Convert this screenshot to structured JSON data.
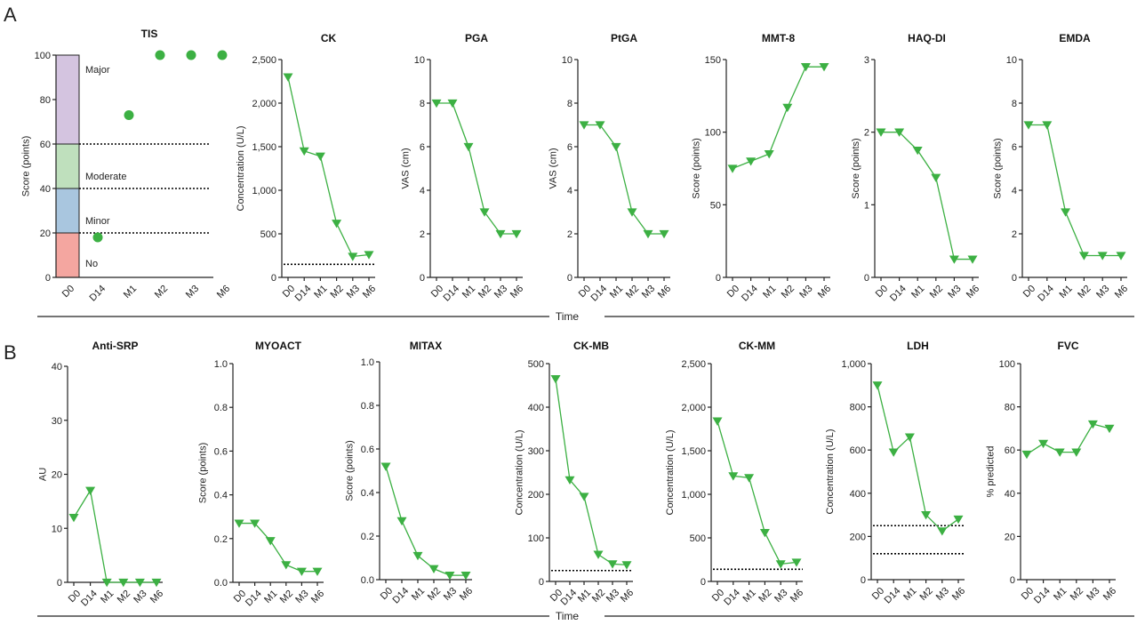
{
  "figure": {
    "panel_letters": [
      "A",
      "B"
    ],
    "time_label": "Time",
    "colors": {
      "series": "#3cb043",
      "axis": "#222222",
      "threshold": "#000000"
    }
  },
  "tis_bands": [
    {
      "label": "No",
      "from": 0,
      "to": 20,
      "color": "#f4a6a0"
    },
    {
      "label": "Minor",
      "from": 20,
      "to": 40,
      "color": "#a9c6df"
    },
    {
      "label": "Moderate",
      "from": 40,
      "to": 60,
      "color": "#bfe0bd"
    },
    {
      "label": "Major",
      "from": 60,
      "to": 100,
      "color": "#d4c4e0"
    }
  ],
  "chart_data": [
    {
      "id": "tis",
      "row": "A",
      "type": "scatter",
      "title": "TIS",
      "ylabel": "Score (points)",
      "categories": [
        "D0",
        "D14",
        "M1",
        "M2",
        "M3",
        "M6"
      ],
      "ylim": [
        0,
        100
      ],
      "yticks": [
        0,
        20,
        40,
        60,
        80,
        100
      ],
      "ytick_labels": [
        "0",
        "20",
        "40",
        "60",
        "80",
        "100"
      ],
      "values": [
        null,
        18,
        73,
        100,
        100,
        100
      ],
      "thresholds": [
        20,
        40,
        60
      ]
    },
    {
      "id": "ck",
      "row": "A",
      "type": "line",
      "title": "CK",
      "ylabel": "Concentration (U/L)",
      "categories": [
        "D0",
        "D14",
        "M1",
        "M2",
        "M3",
        "M6"
      ],
      "ylim": [
        0,
        2500
      ],
      "yticks": [
        0,
        500,
        1000,
        1500,
        2000,
        2500
      ],
      "ytick_labels": [
        "0",
        "500",
        "1,000",
        "1,500",
        "2,000",
        "2,500"
      ],
      "values": [
        2300,
        1450,
        1390,
        620,
        240,
        260
      ],
      "thresholds": [
        150
      ]
    },
    {
      "id": "pga",
      "row": "A",
      "type": "line",
      "title": "PGA",
      "ylabel": "VAS (cm)",
      "categories": [
        "D0",
        "D14",
        "M1",
        "M2",
        "M3",
        "M6"
      ],
      "ylim": [
        0,
        10
      ],
      "yticks": [
        0,
        2,
        4,
        6,
        8,
        10
      ],
      "ytick_labels": [
        "0",
        "2",
        "4",
        "6",
        "8",
        "10"
      ],
      "values": [
        8,
        8,
        6,
        3,
        2,
        2
      ],
      "thresholds": []
    },
    {
      "id": "ptga",
      "row": "A",
      "type": "line",
      "title": "PtGA",
      "ylabel": "VAS (cm)",
      "categories": [
        "D0",
        "D14",
        "M1",
        "M2",
        "M3",
        "M6"
      ],
      "ylim": [
        0,
        10
      ],
      "yticks": [
        0,
        2,
        4,
        6,
        8,
        10
      ],
      "ytick_labels": [
        "0",
        "2",
        "4",
        "6",
        "8",
        "10"
      ],
      "values": [
        7,
        7,
        6,
        3,
        2,
        2
      ],
      "thresholds": []
    },
    {
      "id": "mmt8",
      "row": "A",
      "type": "line",
      "title": "MMT-8",
      "ylabel": "Score (points)",
      "categories": [
        "D0",
        "D14",
        "M1",
        "M2",
        "M3",
        "M6"
      ],
      "ylim": [
        0,
        150
      ],
      "yticks": [
        0,
        50,
        100,
        150
      ],
      "ytick_labels": [
        "0",
        "50",
        "100",
        "150"
      ],
      "values": [
        75,
        80,
        85,
        117,
        145,
        145
      ],
      "thresholds": []
    },
    {
      "id": "haqdi",
      "row": "A",
      "type": "line",
      "title": "HAQ-DI",
      "ylabel": "Score (points)",
      "categories": [
        "D0",
        "D14",
        "M1",
        "M2",
        "M3",
        "M6"
      ],
      "ylim": [
        0,
        3
      ],
      "yticks": [
        0,
        1,
        2,
        3
      ],
      "ytick_labels": [
        "0",
        "1",
        "2",
        "3"
      ],
      "values": [
        2,
        2,
        1.75,
        1.375,
        0.25,
        0.25
      ],
      "thresholds": []
    },
    {
      "id": "emda",
      "row": "A",
      "type": "line",
      "title": "EMDA",
      "ylabel": "Score (points)",
      "categories": [
        "D0",
        "D14",
        "M1",
        "M2",
        "M3",
        "M6"
      ],
      "ylim": [
        0,
        10
      ],
      "yticks": [
        0,
        2,
        4,
        6,
        8,
        10
      ],
      "ytick_labels": [
        "0",
        "2",
        "4",
        "6",
        "8",
        "10"
      ],
      "values": [
        7,
        7,
        3,
        1,
        1,
        1
      ],
      "thresholds": []
    },
    {
      "id": "antisrp",
      "row": "B",
      "type": "line",
      "title": "Anti-SRP",
      "ylabel": "AU",
      "categories": [
        "D0",
        "D14",
        "M1",
        "M2",
        "M3",
        "M6"
      ],
      "ylim": [
        0,
        40
      ],
      "yticks": [
        0,
        10,
        20,
        30,
        40
      ],
      "ytick_labels": [
        "0",
        "10",
        "20",
        "30",
        "40"
      ],
      "values": [
        12,
        17,
        0,
        0,
        0,
        0
      ],
      "thresholds": []
    },
    {
      "id": "myoact",
      "row": "B",
      "type": "line",
      "title": "MYOACT",
      "ylabel": "Score (points)",
      "categories": [
        "D0",
        "D14",
        "M1",
        "M2",
        "M3",
        "M6"
      ],
      "ylim": [
        0,
        1
      ],
      "yticks": [
        0,
        0.2,
        0.4,
        0.6,
        0.8,
        1
      ],
      "ytick_labels": [
        "0.0",
        "0.2",
        "0.4",
        "0.6",
        "0.8",
        "1.0"
      ],
      "values": [
        0.27,
        0.27,
        0.19,
        0.08,
        0.05,
        0.05
      ],
      "thresholds": []
    },
    {
      "id": "mitax",
      "row": "B",
      "type": "line",
      "title": "MITAX",
      "ylabel": "Score (points)",
      "categories": [
        "D0",
        "D14",
        "M1",
        "M2",
        "M3",
        "M6"
      ],
      "ylim": [
        0,
        1
      ],
      "yticks": [
        0,
        0.2,
        0.4,
        0.6,
        0.8,
        1
      ],
      "ytick_labels": [
        "0.0",
        "0.2",
        "0.4",
        "0.6",
        "0.8",
        "1.0"
      ],
      "values": [
        0.52,
        0.27,
        0.11,
        0.05,
        0.02,
        0.02
      ],
      "thresholds": []
    },
    {
      "id": "ckmb",
      "row": "B",
      "type": "line",
      "title": "CK-MB",
      "ylabel": "Concentration (U/L)",
      "categories": [
        "D0",
        "D14",
        "M1",
        "M2",
        "M3",
        "M6"
      ],
      "ylim": [
        0,
        500
      ],
      "yticks": [
        0,
        100,
        200,
        300,
        400,
        500
      ],
      "ytick_labels": [
        "0",
        "100",
        "200",
        "300",
        "400",
        "500"
      ],
      "values": [
        465,
        233,
        195,
        62,
        40,
        38
      ],
      "thresholds": [
        25
      ]
    },
    {
      "id": "ckmm",
      "row": "B",
      "type": "line",
      "title": "CK-MM",
      "ylabel": "Concentration (U/L)",
      "categories": [
        "D0",
        "D14",
        "M1",
        "M2",
        "M3",
        "M6"
      ],
      "ylim": [
        0,
        2500
      ],
      "yticks": [
        0,
        500,
        1000,
        1500,
        2000,
        2500
      ],
      "ytick_labels": [
        "0",
        "500",
        "1,000",
        "1,500",
        "2,000",
        "2,500"
      ],
      "values": [
        1840,
        1210,
        1190,
        560,
        200,
        220
      ],
      "thresholds": [
        140
      ]
    },
    {
      "id": "ldh",
      "row": "B",
      "type": "line",
      "title": "LDH",
      "ylabel": "Concentration (U/L)",
      "categories": [
        "D0",
        "D14",
        "M1",
        "M2",
        "M3",
        "M6"
      ],
      "ylim": [
        0,
        1000
      ],
      "yticks": [
        0,
        200,
        400,
        600,
        800,
        1000
      ],
      "ytick_labels": [
        "0",
        "200",
        "400",
        "600",
        "800",
        "1,000"
      ],
      "values": [
        900,
        590,
        660,
        300,
        225,
        280
      ],
      "thresholds": [
        120,
        250
      ]
    },
    {
      "id": "fvc",
      "row": "B",
      "type": "line",
      "title": "FVC",
      "ylabel": "% predicted",
      "categories": [
        "D0",
        "D14",
        "M1",
        "M2",
        "M3",
        "M6"
      ],
      "ylim": [
        0,
        100
      ],
      "yticks": [
        0,
        20,
        40,
        60,
        80,
        100
      ],
      "ytick_labels": [
        "0",
        "20",
        "40",
        "60",
        "80",
        "100"
      ],
      "values": [
        58,
        63,
        59,
        59,
        72,
        70
      ],
      "thresholds": []
    }
  ]
}
